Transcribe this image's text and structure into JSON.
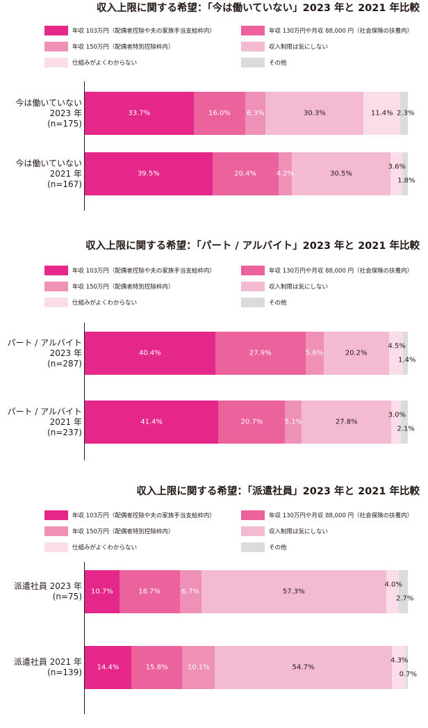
{
  "colors": {
    "c1": "#e6278a",
    "c2": "#ec629c",
    "c3": "#ef90b7",
    "c4": "#f4bad2",
    "c5": "#fadde9",
    "c6": "#dadbdb"
  },
  "legend": [
    "年収 103万円（配偶者控除や夫の家族手当支給枠内）",
    "年収 130万円や月収 88,000 円（社会保険の扶養内）",
    "年収 150万円（配偶者特別控除枠内）",
    "収入制限は気にしない",
    "仕組みがよくわからない",
    "その他"
  ],
  "chart_data": [
    {
      "type": "bar",
      "orientation": "horizontal-stacked",
      "title": "収入上限に関する希望：「今は働いていない」2023 年と 2021 年比較",
      "categories": [
        [
          "今は働いていない",
          "2023 年",
          "(n=175)"
        ],
        [
          "今は働いていない",
          "2021 年",
          "(n=167)"
        ]
      ],
      "series": [
        {
          "name": "年収 103万円（配偶者控除や夫の家族手当支給枠内）",
          "values": [
            33.7,
            39.5
          ],
          "labels": [
            "33.7%",
            "39.5%"
          ]
        },
        {
          "name": "年収 130万円や月収 88,000 円（社会保険の扶養内）",
          "values": [
            16.0,
            20.4
          ],
          "labels": [
            "16.0%",
            "20.4%"
          ]
        },
        {
          "name": "年収 150万円（配偶者特別控除枠内）",
          "values": [
            6.3,
            4.2
          ],
          "labels": [
            "6.3%",
            "4.2%"
          ]
        },
        {
          "name": "収入制限は気にしない",
          "values": [
            30.3,
            30.5
          ],
          "labels": [
            "30.3%",
            "30.5%"
          ]
        },
        {
          "name": "仕組みがよくわからない",
          "values": [
            11.4,
            3.6
          ],
          "labels": [
            "11.4%",
            "3.6%"
          ]
        },
        {
          "name": "その他",
          "values": [
            2.3,
            1.8
          ],
          "labels": [
            "2.3%",
            "1.8%"
          ]
        }
      ]
    },
    {
      "type": "bar",
      "orientation": "horizontal-stacked",
      "title": "収入上限に関する希望：「パート / アルバイト」2023 年と 2021 年比較",
      "categories": [
        [
          "パート / アルバイト",
          "2023 年",
          "(n=287)"
        ],
        [
          "パート / アルバイト",
          "2021 年",
          "(n=237)"
        ]
      ],
      "series": [
        {
          "name": "年収 103万円（配偶者控除や夫の家族手当支給枠内）",
          "values": [
            40.4,
            41.4
          ],
          "labels": [
            "40.4%",
            "41.4%"
          ]
        },
        {
          "name": "年収 130万円や月収 88,000 円（社会保険の扶養内）",
          "values": [
            27.9,
            20.7
          ],
          "labels": [
            "27.9%",
            "20.7%"
          ]
        },
        {
          "name": "年収 150万円（配偶者特別控除枠内）",
          "values": [
            5.6,
            5.1
          ],
          "labels": [
            "5.6%",
            "5.1%"
          ]
        },
        {
          "name": "収入制限は気にしない",
          "values": [
            20.2,
            27.8
          ],
          "labels": [
            "20.2%",
            "27.8%"
          ]
        },
        {
          "name": "仕組みがよくわからない",
          "values": [
            4.5,
            3.0
          ],
          "labels": [
            "4.5%",
            "3.0%"
          ]
        },
        {
          "name": "その他",
          "values": [
            1.4,
            2.1
          ],
          "labels": [
            "1.4%",
            "2.1%"
          ]
        }
      ]
    },
    {
      "type": "bar",
      "orientation": "horizontal-stacked",
      "title": "収入上限に関する希望：「派遣社員」2023 年と 2021 年比較",
      "categories": [
        [
          "派遣社員 2023 年",
          "(n=75)"
        ],
        [
          "派遣社員 2021 年",
          "(n=139)"
        ]
      ],
      "series": [
        {
          "name": "年収 103万円（配偶者控除や夫の家族手当支給枠内）",
          "values": [
            10.7,
            14.4
          ],
          "labels": [
            "10.7%",
            "14.4%"
          ]
        },
        {
          "name": "年収 130万円や月収 88,000 円（社会保険の扶養内）",
          "values": [
            18.7,
            15.8
          ],
          "labels": [
            "18.7%",
            "15.8%"
          ]
        },
        {
          "name": "年収 150万円（配偶者特別控除枠内）",
          "values": [
            6.7,
            10.1
          ],
          "labels": [
            "6.7%",
            "10.1%"
          ]
        },
        {
          "name": "収入制限は気にしない",
          "values": [
            57.3,
            54.7
          ],
          "labels": [
            "57.3%",
            "54.7%"
          ]
        },
        {
          "name": "仕組みがよくわからない",
          "values": [
            4.0,
            4.3
          ],
          "labels": [
            "4.0%",
            "4.3%"
          ]
        },
        {
          "name": "その他",
          "values": [
            2.7,
            0.7
          ],
          "labels": [
            "2.7%",
            "0.7%"
          ]
        }
      ]
    }
  ]
}
